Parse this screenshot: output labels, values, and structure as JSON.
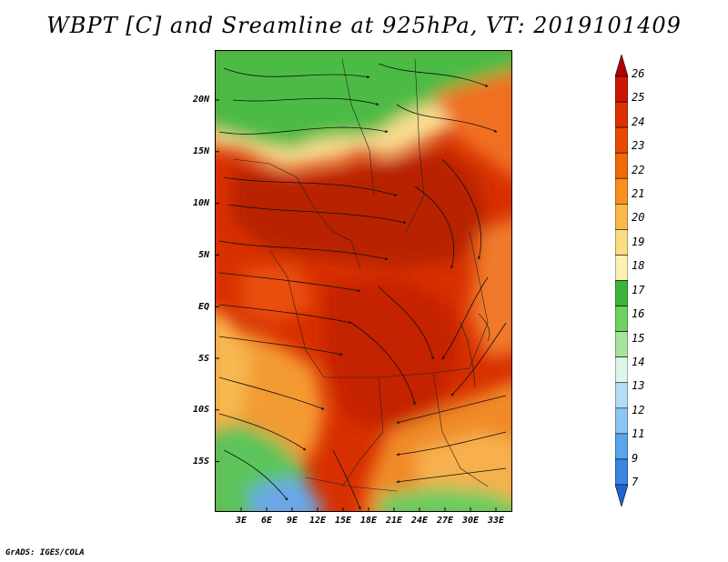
{
  "title": "WBPT [C] and Sreamline at 925hPa, VT: 2019101409",
  "map": {
    "region": "Central Africa",
    "variable": "Wet-bulb potential temperature",
    "level": "925hPa",
    "valid_time": "2019101409",
    "lat_labels": [
      "20N",
      "15N",
      "10N",
      "5N",
      "EQ",
      "5S",
      "10S",
      "15S"
    ],
    "lon_labels": [
      "3E",
      "6E",
      "9E",
      "12E",
      "15E",
      "18E",
      "21E",
      "24E",
      "27E",
      "30E",
      "33E"
    ]
  },
  "colorbar": {
    "labels": [
      "26",
      "25",
      "24",
      "23",
      "22",
      "21",
      "20",
      "19",
      "18",
      "17",
      "16",
      "15",
      "14",
      "13",
      "12",
      "11",
      "9",
      "7"
    ],
    "colors": [
      "#b40000",
      "#cc1800",
      "#dc3000",
      "#e84a00",
      "#f06a0a",
      "#f89020",
      "#fab848",
      "#fadc82",
      "#fcf0b4",
      "#3cb43c",
      "#6ed060",
      "#a6e49e",
      "#dcf6e6",
      "#b4dcf6",
      "#8cc4f2",
      "#5aa4ea",
      "#3886e0",
      "#1e64d2"
    ]
  },
  "footer": {
    "credit": "GrADS: IGES/COLA"
  },
  "colors": {
    "hot": "#cc2200",
    "warm": "#f07a10",
    "mild": "#f8c060",
    "cool": "#48b848",
    "cold": "#6aa8e8"
  }
}
